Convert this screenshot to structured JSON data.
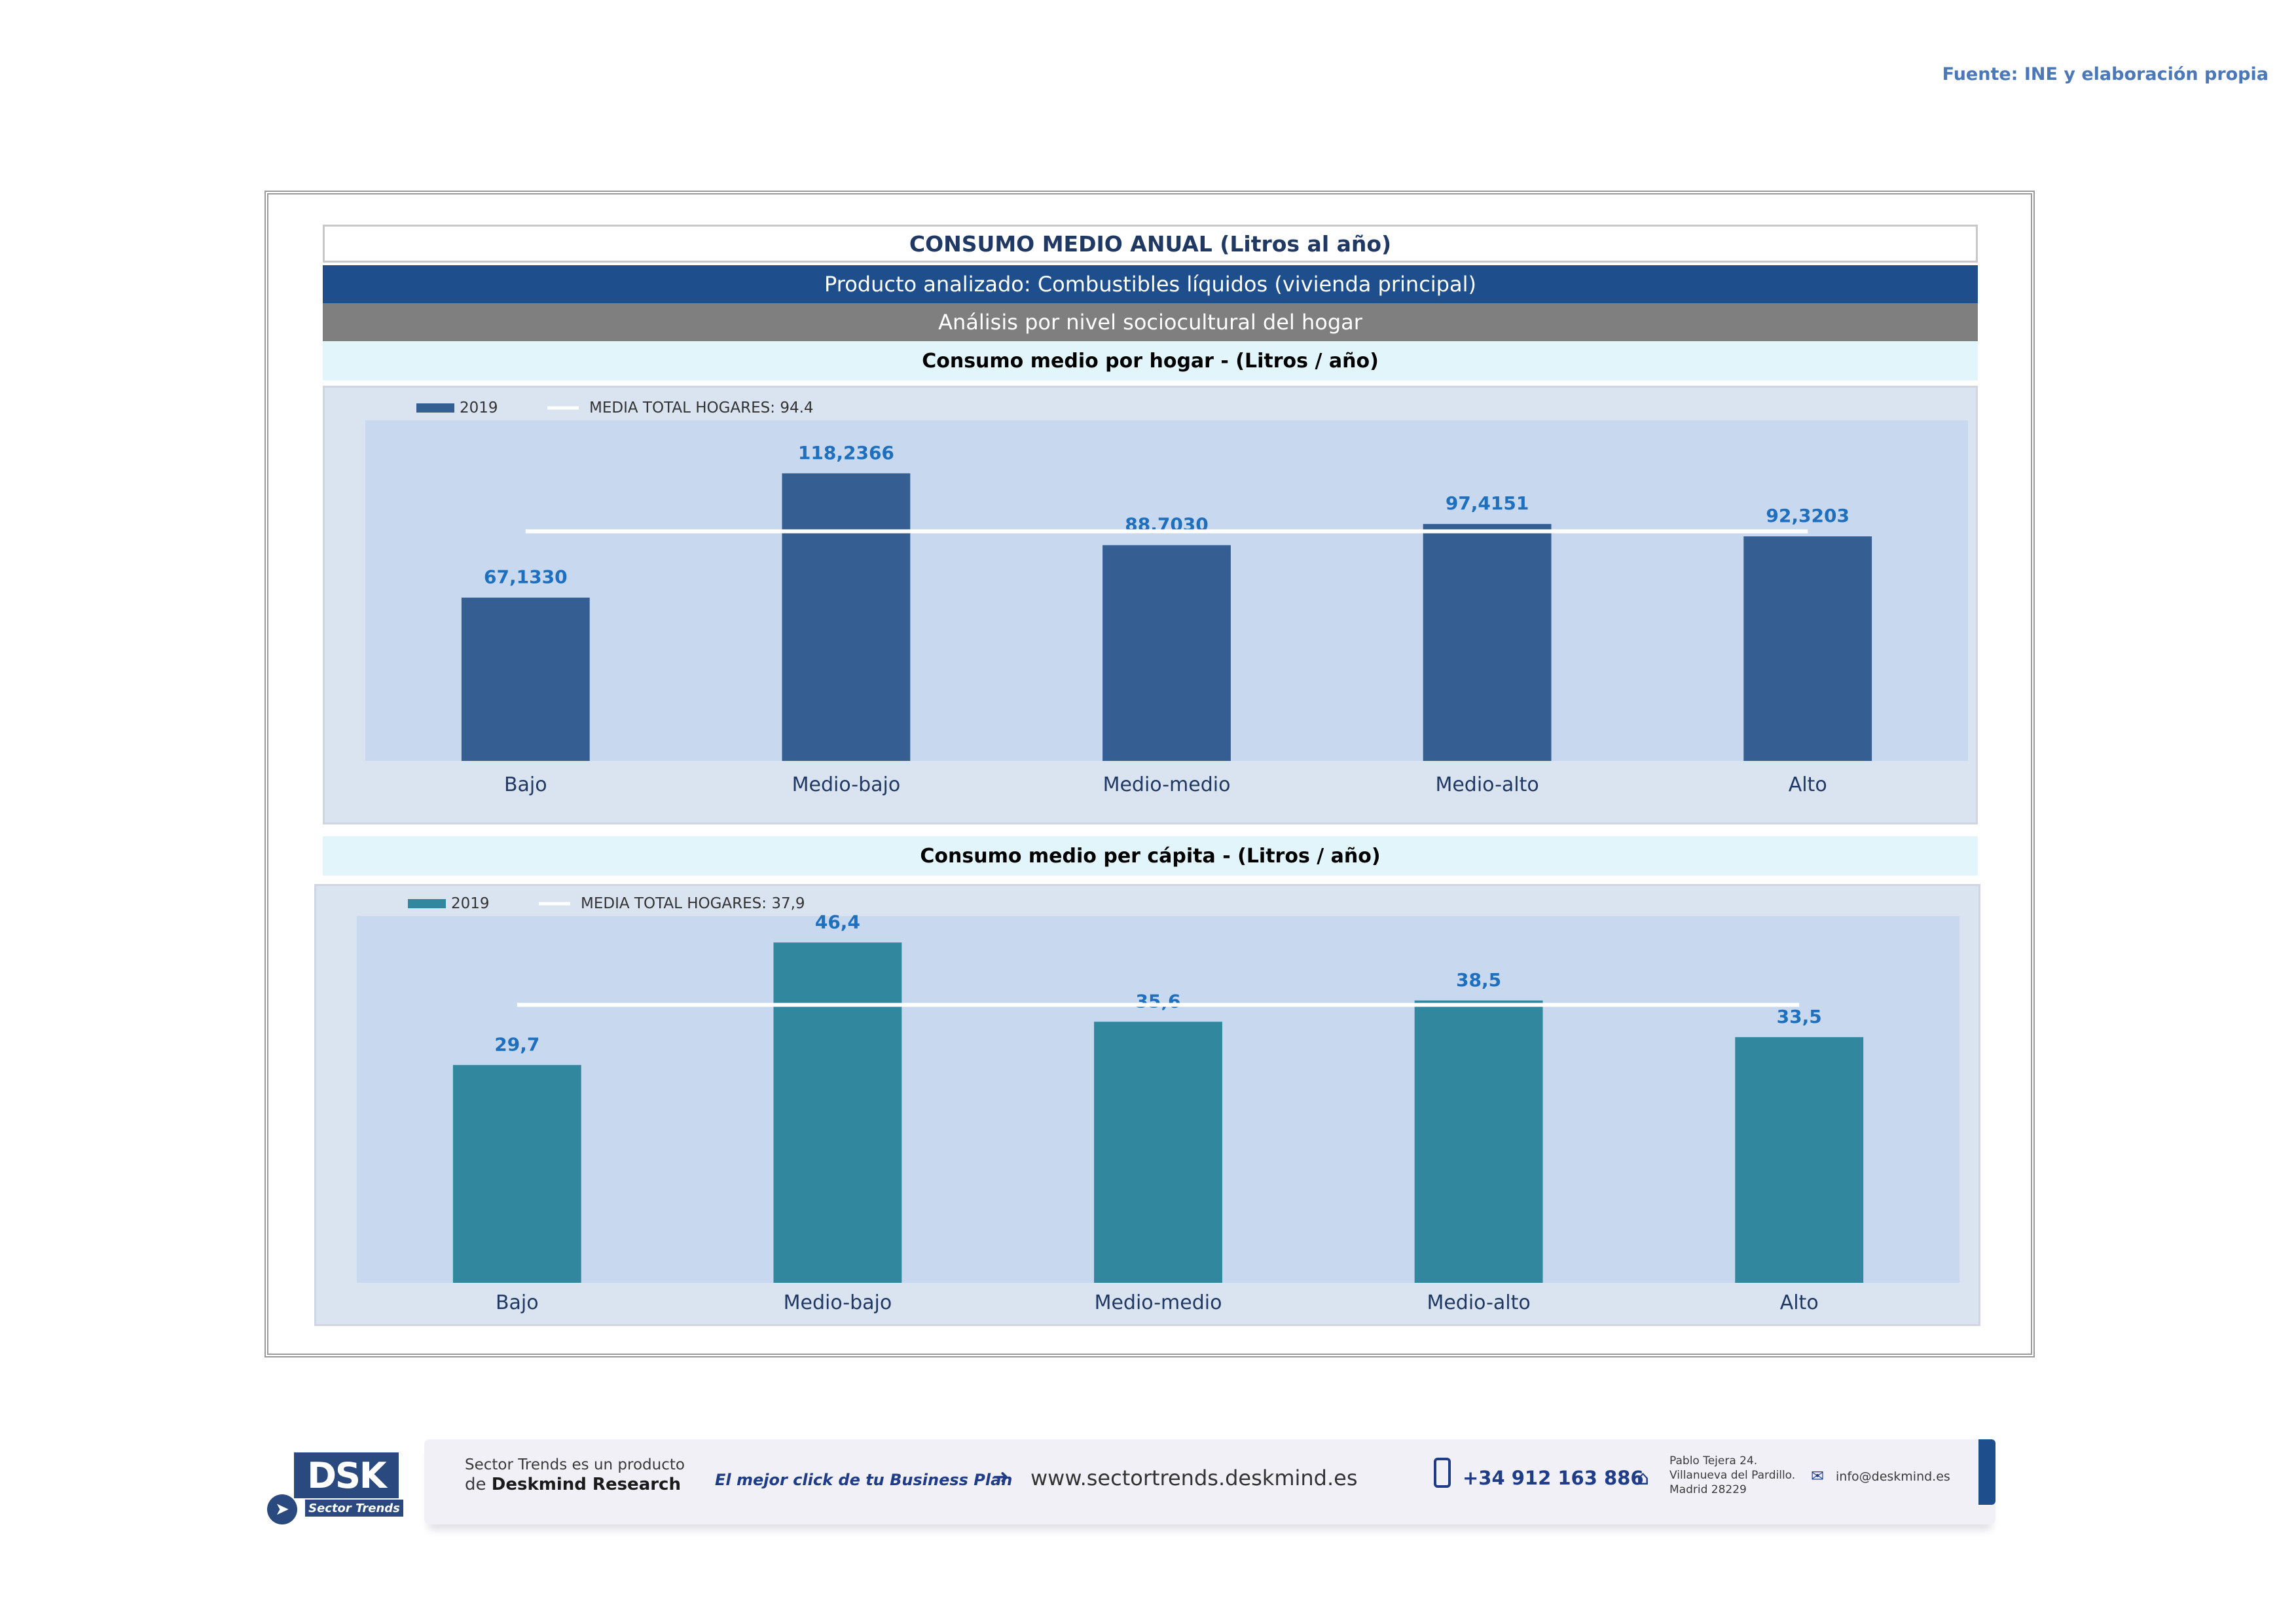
{
  "source_note": "Fuente: INE y elaboración propia",
  "header": {
    "title": "CONSUMO MEDIO ANUAL (Litros al año)",
    "product": "Producto analizado: Combustibles líquidos (vivienda principal)",
    "analysis": "Análisis por nivel sociocultural del hogar"
  },
  "colors": {
    "chart1_bar": "#355f93",
    "chart2_bar": "#31879e",
    "panel_bg": "#dae3f0",
    "plot_bg": "#c8d8ef",
    "label_color": "#1f6fbf",
    "mean_line": "#ffffff"
  },
  "chart_data": [
    {
      "type": "bar",
      "title": "Consumo medio por hogar -  (Litros / año)",
      "categories": [
        "Bajo",
        "Medio-bajo",
        "Medio-medio",
        "Medio-alto",
        "Alto"
      ],
      "series": [
        {
          "name": "2019",
          "values": [
            67.133,
            118.2366,
            88.703,
            97.4151,
            92.3203
          ],
          "labels": [
            "67,1330",
            "118,2366",
            "88,7030",
            "97,4151",
            "92,3203"
          ]
        }
      ],
      "reference_line": {
        "name": "MEDIA TOTAL  HOGARES:",
        "value": 94.4,
        "label": "94.4"
      },
      "ylim": [
        0,
        140
      ],
      "grid": false,
      "legend": "top-left"
    },
    {
      "type": "bar",
      "title": "Consumo medio per cápita -  (Litros / año)",
      "categories": [
        "Bajo",
        "Medio-bajo",
        "Medio-medio",
        "Medio-alto",
        "Alto"
      ],
      "series": [
        {
          "name": "2019",
          "values": [
            29.7,
            46.4,
            35.6,
            38.5,
            33.5
          ],
          "labels": [
            "29,7",
            "46,4",
            "35,6",
            "38,5",
            "33,5"
          ]
        }
      ],
      "reference_line": {
        "name": "MEDIA TOTAL  HOGARES:",
        "value": 37.9,
        "label": "37,9"
      },
      "ylim": [
        0,
        50
      ],
      "grid": false,
      "legend": "top-left"
    }
  ],
  "footer": {
    "logo_text": "DSK",
    "logo_sub": "Sector Trends",
    "product_line1": "Sector Trends es un producto",
    "product_line2_prefix": "de",
    "product_line2_brand": "Deskmind Research",
    "slogan": "El mejor click de tu Business Plan",
    "website": "www.sectortrends.deskmind.es",
    "phone": "+34 912 163 886",
    "address_line1": "Pablo Tejera 24.",
    "address_line2": "Villanueva del Pardillo.",
    "address_line3": "Madrid 28229",
    "email": "info@deskmind.es"
  }
}
